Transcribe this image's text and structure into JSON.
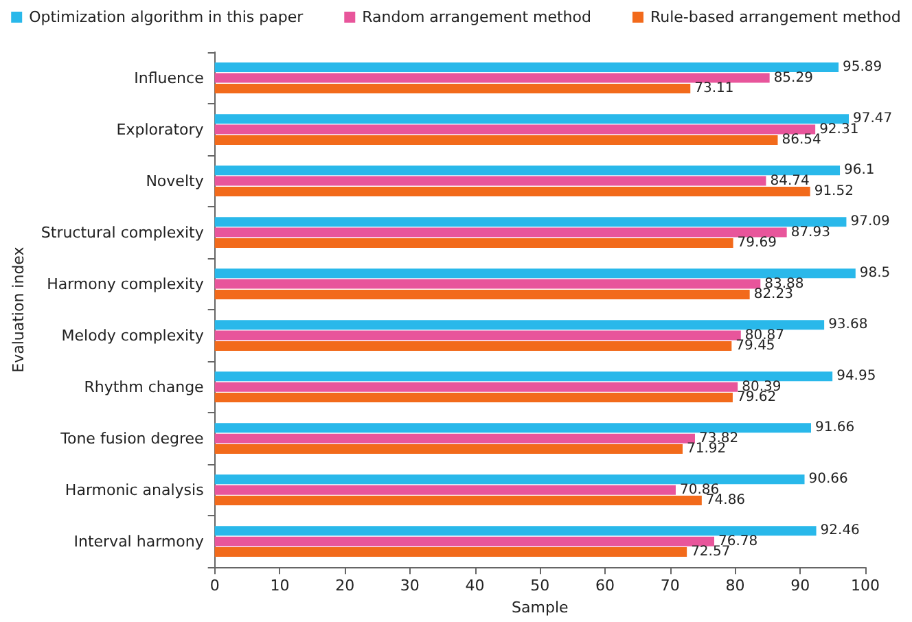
{
  "chart_data": {
    "type": "bar",
    "orientation": "horizontal",
    "xlabel": "Sample",
    "ylabel": "Evaluation index",
    "categories": [
      "Influence",
      "Exploratory",
      "Novelty",
      "Structural complexity",
      "Harmony complexity",
      "Melody complexity",
      "Rhythm change",
      "Tone fusion degree",
      "Harmonic analysis",
      "Interval harmony"
    ],
    "series": [
      {
        "name": "Optimization algorithm in this paper",
        "color": "#29b8ea",
        "values": [
          95.89,
          97.47,
          96.1,
          97.09,
          98.5,
          93.68,
          94.95,
          91.66,
          90.66,
          92.46
        ]
      },
      {
        "name": "Random arrangement method",
        "color": "#e8559b",
        "values": [
          85.29,
          92.31,
          84.74,
          87.93,
          83.88,
          80.87,
          80.39,
          73.82,
          70.86,
          76.78
        ]
      },
      {
        "name": "Rule-based arrangement method",
        "color": "#f26a1b",
        "values": [
          73.11,
          86.54,
          91.52,
          79.69,
          82.23,
          79.45,
          79.62,
          71.92,
          74.86,
          72.57
        ]
      }
    ],
    "xlim": [
      0,
      100
    ],
    "xticks": [
      0,
      10,
      20,
      30,
      40,
      50,
      60,
      70,
      80,
      90,
      100
    ],
    "data_labels": true,
    "legend": "top",
    "grid": false
  }
}
